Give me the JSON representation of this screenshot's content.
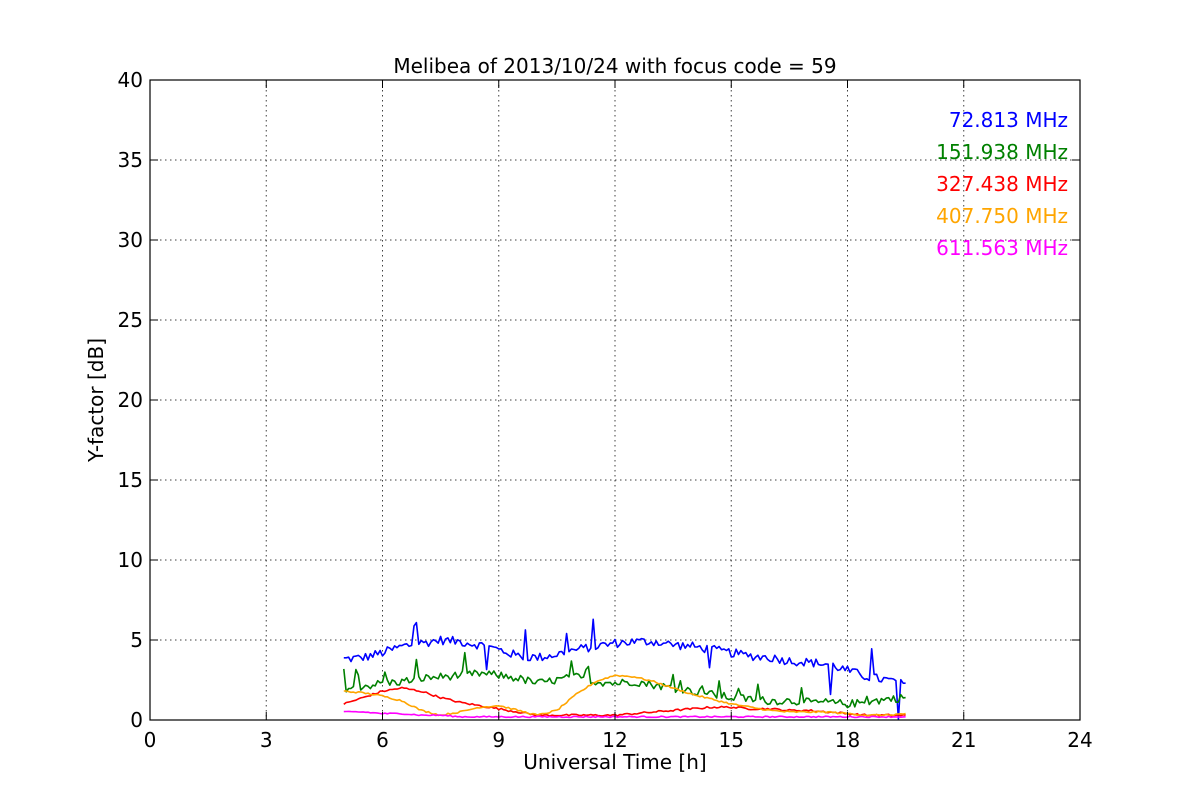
{
  "chart_data": {
    "type": "line",
    "title": "Melibea of 2013/10/24 with focus code = 59",
    "xlabel": "Universal Time [h]",
    "ylabel": "Y-factor [dB]",
    "xlim": [
      0,
      24
    ],
    "ylim": [
      0,
      40
    ],
    "xticks": [
      0,
      3,
      6,
      9,
      12,
      15,
      18,
      21,
      24
    ],
    "yticks": [
      0,
      5,
      10,
      15,
      20,
      25,
      30,
      35,
      40
    ],
    "grid": true,
    "legend_placement": "top-right",
    "series": [
      {
        "name": "72.813 MHz",
        "color": "#0000ff",
        "x": [
          5.0,
          5.5,
          6.0,
          6.5,
          7.0,
          7.5,
          8.0,
          8.5,
          9.0,
          9.5,
          10.0,
          10.5,
          11.0,
          11.5,
          12.0,
          12.5,
          13.0,
          13.5,
          14.0,
          14.5,
          15.0,
          15.5,
          16.0,
          16.5,
          17.0,
          17.5,
          18.0,
          18.5,
          19.0,
          19.5
        ],
        "y": [
          3.8,
          3.9,
          4.2,
          4.6,
          4.8,
          5.0,
          4.9,
          4.7,
          4.4,
          4.0,
          3.9,
          4.1,
          4.4,
          4.6,
          4.8,
          4.9,
          4.9,
          4.7,
          4.6,
          4.4,
          4.2,
          4.0,
          3.9,
          3.7,
          3.6,
          3.5,
          3.1,
          2.7,
          2.5,
          2.3
        ]
      },
      {
        "name": "151.938 MHz",
        "color": "#008000",
        "x": [
          5.0,
          5.5,
          6.0,
          6.5,
          7.0,
          7.5,
          8.0,
          8.5,
          9.0,
          9.5,
          10.0,
          10.5,
          11.0,
          11.5,
          12.0,
          12.5,
          13.0,
          13.5,
          14.0,
          14.5,
          15.0,
          15.5,
          16.0,
          16.5,
          17.0,
          17.5,
          18.0,
          18.5,
          19.0,
          19.5
        ],
        "y": [
          2.0,
          2.1,
          2.3,
          2.4,
          2.6,
          2.7,
          2.8,
          2.9,
          2.8,
          2.6,
          2.3,
          2.5,
          2.7,
          2.4,
          2.3,
          2.4,
          2.2,
          2.0,
          1.8,
          1.6,
          1.4,
          1.3,
          1.2,
          1.2,
          1.1,
          1.1,
          1.0,
          1.1,
          1.3,
          1.4
        ]
      },
      {
        "name": "327.438 MHz",
        "color": "#ff0000",
        "x": [
          5.0,
          5.5,
          6.0,
          6.5,
          7.0,
          7.5,
          8.0,
          8.5,
          9.0,
          9.5,
          10.0,
          10.5,
          11.0,
          11.5,
          12.0,
          12.5,
          13.0,
          13.5,
          14.0,
          14.5,
          15.0,
          15.5,
          16.0,
          16.5,
          17.0,
          17.5,
          18.0,
          18.5,
          19.0,
          19.5
        ],
        "y": [
          1.0,
          1.4,
          1.8,
          2.0,
          1.8,
          1.4,
          1.1,
          0.9,
          0.7,
          0.5,
          0.3,
          0.3,
          0.3,
          0.3,
          0.3,
          0.4,
          0.5,
          0.6,
          0.7,
          0.8,
          0.8,
          0.7,
          0.7,
          0.6,
          0.6,
          0.5,
          0.4,
          0.3,
          0.3,
          0.3
        ]
      },
      {
        "name": "407.750 MHz",
        "color": "#ffa500",
        "x": [
          5.0,
          5.5,
          6.0,
          6.5,
          7.0,
          7.5,
          8.0,
          8.5,
          9.0,
          9.5,
          10.0,
          10.5,
          11.0,
          11.5,
          12.0,
          12.5,
          13.0,
          13.5,
          14.0,
          14.5,
          15.0,
          15.5,
          16.0,
          16.5,
          17.0,
          17.5,
          18.0,
          18.5,
          19.0,
          19.5
        ],
        "y": [
          1.8,
          1.7,
          1.5,
          1.2,
          0.6,
          0.3,
          0.5,
          0.8,
          0.9,
          0.6,
          0.3,
          0.6,
          1.6,
          2.4,
          2.8,
          2.7,
          2.4,
          2.0,
          1.6,
          1.3,
          1.0,
          0.8,
          0.6,
          0.5,
          0.5,
          0.5,
          0.4,
          0.3,
          0.3,
          0.4
        ]
      },
      {
        "name": "611.563 MHz",
        "color": "#ff00ff",
        "x": [
          5.0,
          5.5,
          6.0,
          6.5,
          7.0,
          7.5,
          8.0,
          8.5,
          9.0,
          9.5,
          10.0,
          10.5,
          11.0,
          11.5,
          12.0,
          12.5,
          13.0,
          13.5,
          14.0,
          14.5,
          15.0,
          15.5,
          16.0,
          16.5,
          17.0,
          17.5,
          18.0,
          18.5,
          19.0,
          19.5
        ],
        "y": [
          0.5,
          0.5,
          0.4,
          0.4,
          0.3,
          0.3,
          0.2,
          0.2,
          0.2,
          0.2,
          0.2,
          0.2,
          0.2,
          0.2,
          0.2,
          0.2,
          0.2,
          0.2,
          0.2,
          0.2,
          0.2,
          0.2,
          0.2,
          0.2,
          0.2,
          0.2,
          0.2,
          0.2,
          0.2,
          0.2
        ]
      }
    ]
  }
}
